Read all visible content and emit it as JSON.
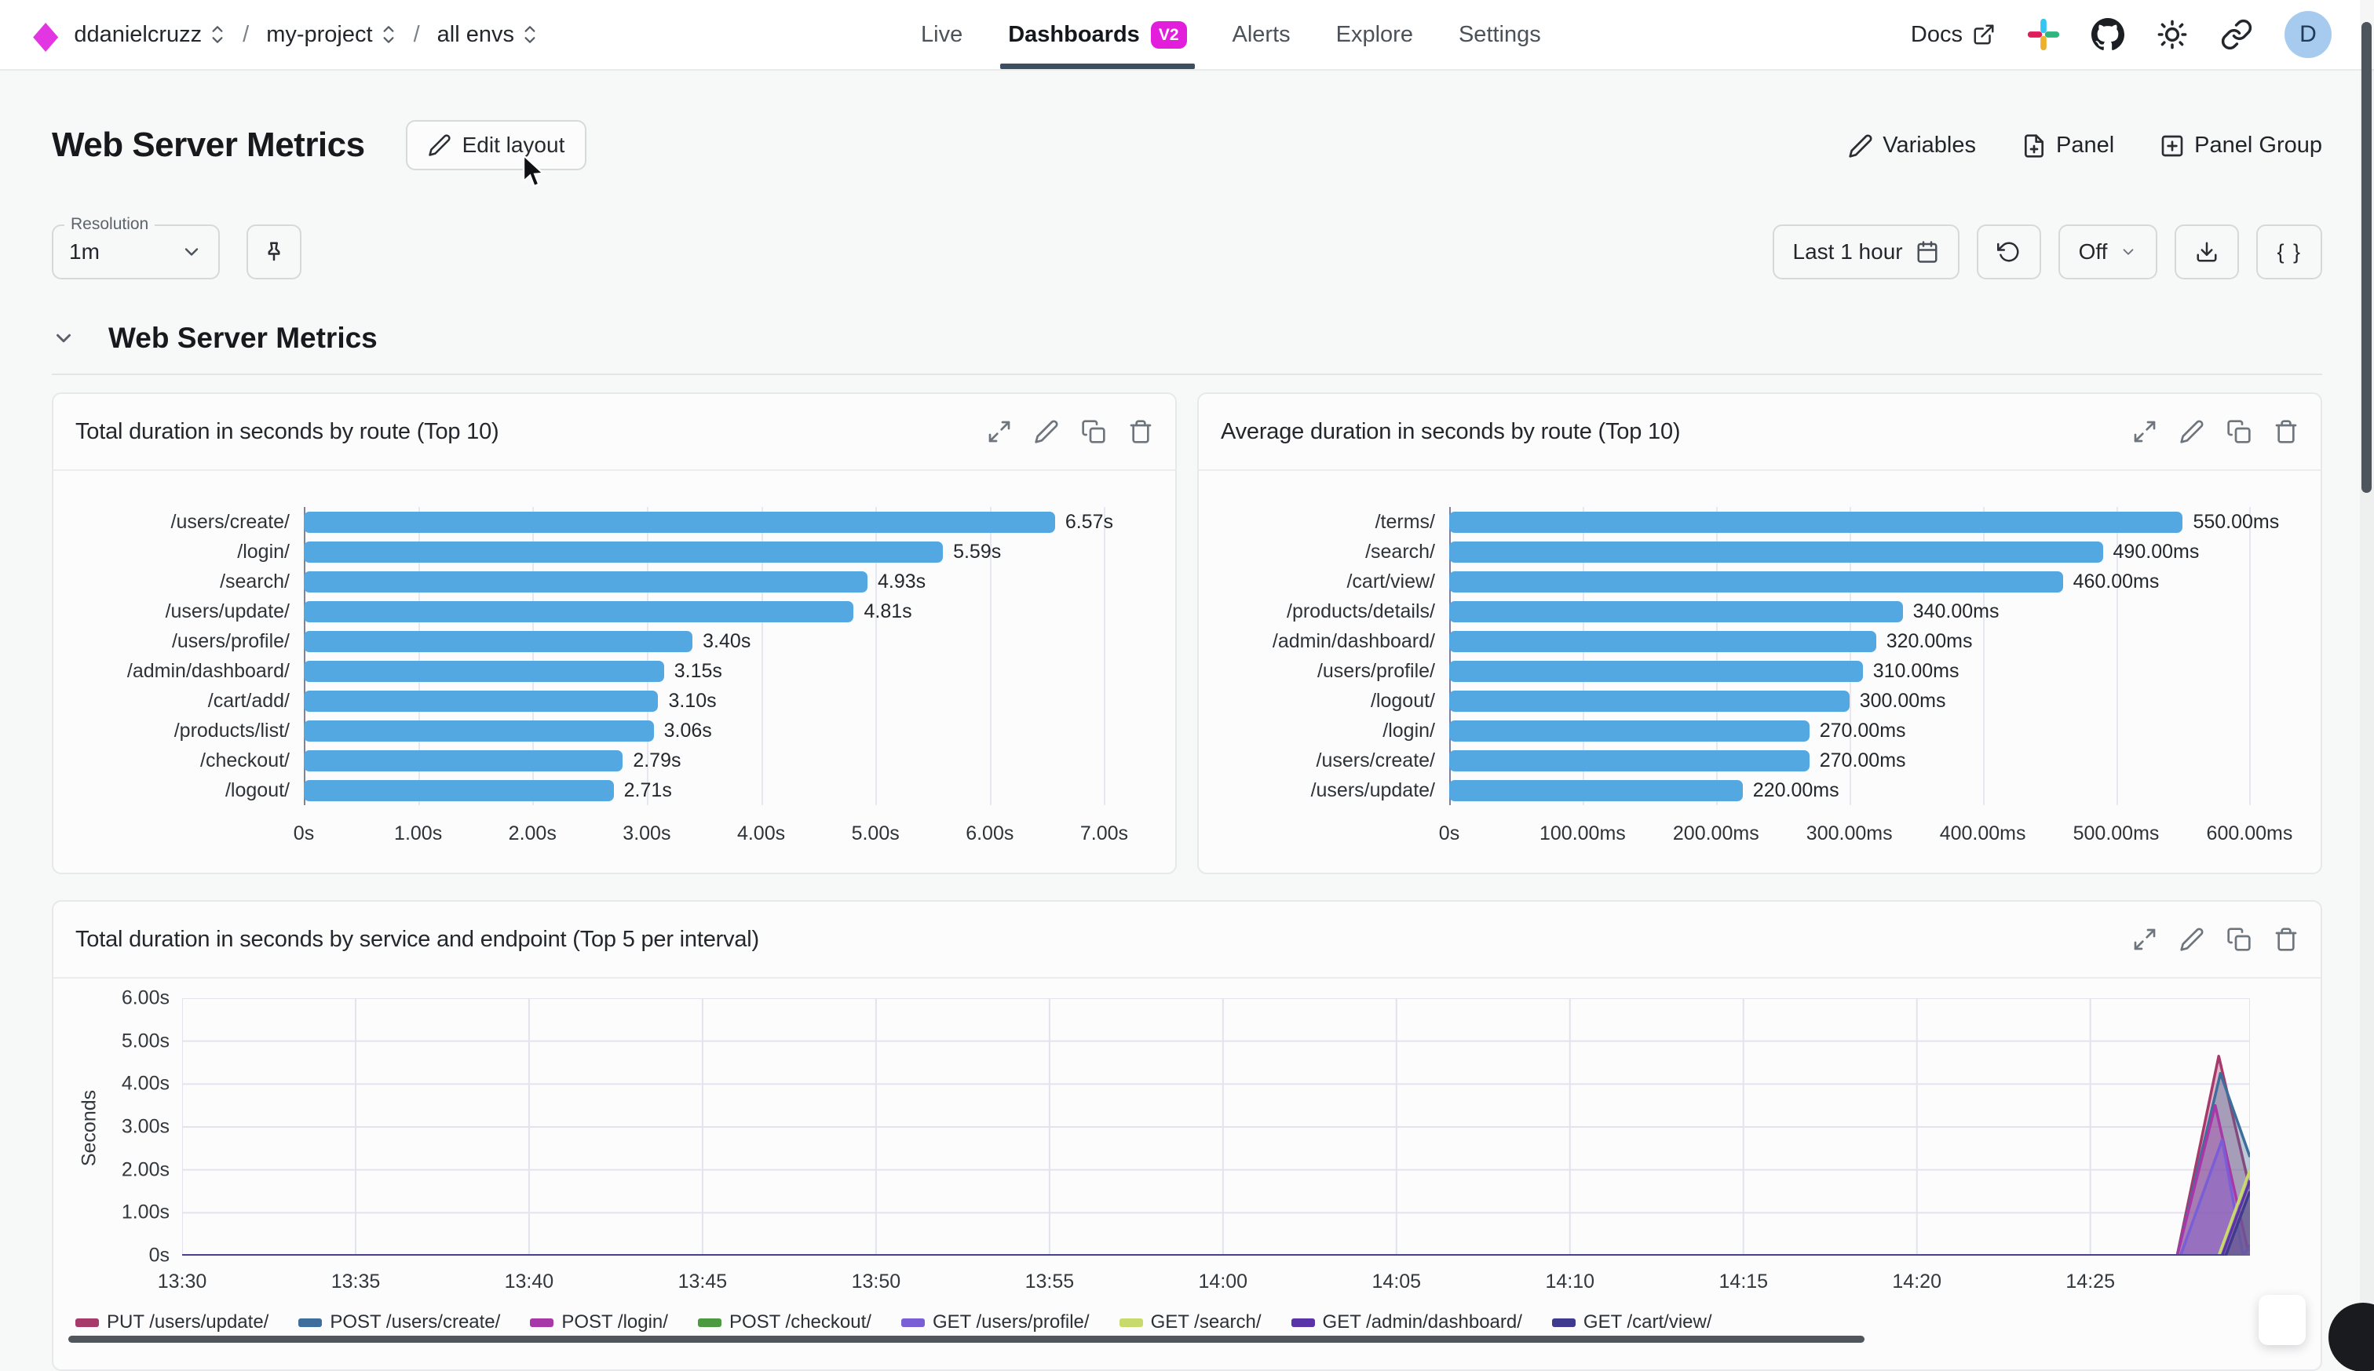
{
  "topbar": {
    "breadcrumb": [
      {
        "label": "ddanielcruzz"
      },
      {
        "label": "my-project"
      },
      {
        "label": "all envs"
      }
    ],
    "separator": "/",
    "nav": [
      {
        "label": "Live",
        "active": false
      },
      {
        "label": "Dashboards",
        "active": true,
        "badge": "V2"
      },
      {
        "label": "Alerts",
        "active": false
      },
      {
        "label": "Explore",
        "active": false
      },
      {
        "label": "Settings",
        "active": false
      }
    ],
    "docs_label": "Docs",
    "avatar_letter": "D"
  },
  "header": {
    "title": "Web Server Metrics",
    "edit_layout_label": "Edit layout",
    "variables_label": "Variables",
    "panel_label": "Panel",
    "panel_group_label": "Panel Group"
  },
  "toolbar": {
    "resolution_label": "Resolution",
    "resolution_value": "1m",
    "time_range_label": "Last 1 hour",
    "live_tail_label": "Off",
    "json_label": "{ }"
  },
  "section": {
    "title": "Web Server Metrics"
  },
  "colors": {
    "accent_magenta": "#E21EDC",
    "bar_blue": "#54A8E1",
    "nav_underline": "#3E4E61",
    "avatar_bg": "#A7CBEE"
  },
  "chart_data": [
    {
      "type": "bar",
      "orientation": "horizontal",
      "title": "Total duration in seconds by route (Top 10)",
      "categories": [
        "/users/create/",
        "/login/",
        "/search/",
        "/users/update/",
        "/users/profile/",
        "/admin/dashboard/",
        "/cart/add/",
        "/products/list/",
        "/checkout/",
        "/logout/"
      ],
      "values": [
        6.57,
        5.59,
        4.93,
        4.81,
        3.4,
        3.15,
        3.1,
        3.06,
        2.79,
        2.71
      ],
      "value_labels": [
        "6.57s",
        "5.59s",
        "4.93s",
        "4.81s",
        "3.40s",
        "3.15s",
        "3.10s",
        "3.06s",
        "2.79s",
        "2.71s"
      ],
      "x_tick_values": [
        0,
        1,
        2,
        3,
        4,
        5,
        6,
        7
      ],
      "x_tick_labels": [
        "0s",
        "1.00s",
        "2.00s",
        "3.00s",
        "4.00s",
        "5.00s",
        "6.00s",
        "7.00s"
      ],
      "bar_color": "#54A8E1",
      "grid": true
    },
    {
      "type": "bar",
      "orientation": "horizontal",
      "title": "Average duration in seconds by route (Top 10)",
      "categories": [
        "/terms/",
        "/search/",
        "/cart/view/",
        "/products/details/",
        "/admin/dashboard/",
        "/users/profile/",
        "/logout/",
        "/login/",
        "/users/create/",
        "/users/update/"
      ],
      "values": [
        550,
        490,
        460,
        340,
        320,
        310,
        300,
        270,
        270,
        220
      ],
      "value_labels": [
        "550.00ms",
        "490.00ms",
        "460.00ms",
        "340.00ms",
        "320.00ms",
        "310.00ms",
        "300.00ms",
        "270.00ms",
        "270.00ms",
        "220.00ms"
      ],
      "x_tick_values": [
        0,
        100,
        200,
        300,
        400,
        500,
        600
      ],
      "x_tick_labels": [
        "0s",
        "100.00ms",
        "200.00ms",
        "300.00ms",
        "400.00ms",
        "500.00ms",
        "600.00ms"
      ],
      "bar_color": "#54A8E1",
      "grid": true
    },
    {
      "type": "line",
      "title": "Total duration in seconds by service and endpoint (Top 5 per interval)",
      "ylabel": "Seconds",
      "y_tick_values": [
        0,
        1,
        2,
        3,
        4,
        5,
        6
      ],
      "y_tick_labels": [
        "0s",
        "1.00s",
        "2.00s",
        "3.00s",
        "4.00s",
        "5.00s",
        "6.00s"
      ],
      "x_tick_values": [
        0,
        5,
        10,
        15,
        20,
        25,
        30,
        35,
        40,
        45,
        50,
        55
      ],
      "x_tick_labels": [
        "13:30",
        "13:35",
        "13:40",
        "13:45",
        "13:50",
        "13:55",
        "14:00",
        "14:05",
        "14:10",
        "14:15",
        "14:20",
        "14:25"
      ],
      "xlim": [
        0,
        59.6
      ],
      "ylim": [
        0,
        6
      ],
      "grid": true,
      "legend_position": "bottom",
      "series": [
        {
          "name": "PUT /users/update/",
          "color": "#A63A6B",
          "points": [
            [
              0,
              0
            ],
            [
              57.5,
              0
            ],
            [
              58.7,
              4.65
            ],
            [
              59.6,
              1.55
            ]
          ]
        },
        {
          "name": "POST /users/create/",
          "color": "#3E6E9C",
          "points": [
            [
              0,
              0
            ],
            [
              57.5,
              0
            ],
            [
              58.75,
              4.25
            ],
            [
              59.6,
              2.3
            ]
          ]
        },
        {
          "name": "POST /login/",
          "color": "#A838A8",
          "points": [
            [
              0,
              0
            ],
            [
              57.5,
              0
            ],
            [
              58.6,
              3.5
            ],
            [
              59.55,
              0.1
            ]
          ]
        },
        {
          "name": "POST /checkout/",
          "color": "#4C9A3F",
          "points": [
            [
              0,
              0
            ],
            [
              59.6,
              0
            ]
          ]
        },
        {
          "name": "GET /users/profile/",
          "color": "#7A5ED6",
          "points": [
            [
              0,
              0
            ],
            [
              57.6,
              0
            ],
            [
              58.8,
              2.7
            ],
            [
              59.4,
              0
            ],
            [
              59.6,
              0.25
            ]
          ]
        },
        {
          "name": "GET /search/",
          "color": "#C9DA6C",
          "points": [
            [
              0,
              0
            ],
            [
              58.7,
              0
            ],
            [
              59.6,
              2.0
            ]
          ]
        },
        {
          "name": "GET /admin/dashboard/",
          "color": "#5A33A8",
          "points": [
            [
              0,
              0
            ],
            [
              58.8,
              0
            ],
            [
              59.6,
              1.75
            ]
          ]
        },
        {
          "name": "GET /cart/view/",
          "color": "#3F3A8F",
          "points": [
            [
              0,
              0
            ],
            [
              58.9,
              0
            ],
            [
              59.6,
              1.5
            ]
          ]
        }
      ]
    }
  ]
}
